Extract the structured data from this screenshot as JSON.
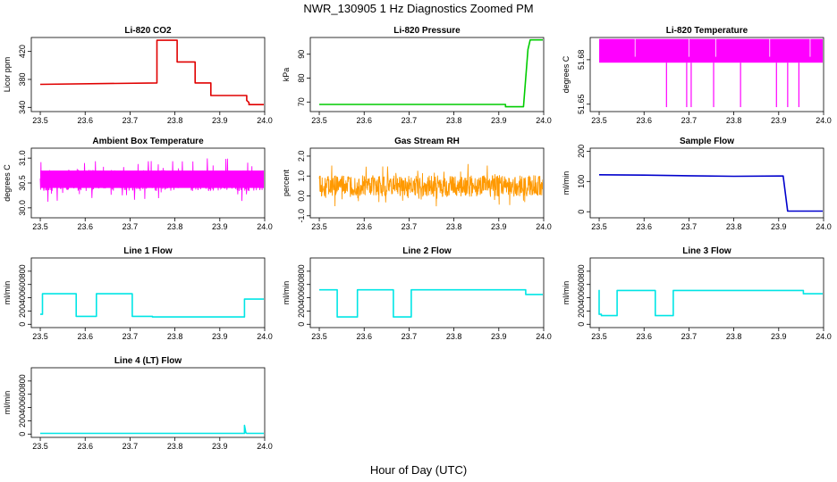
{
  "figure_title": "NWR_130905  1 Hz Diagnostics Zoomed PM",
  "x_axis_label": "Hour of Day (UTC)",
  "chart_data": [
    {
      "type": "line",
      "title": "Li-820 CO2",
      "ylabel": "Licor ppm",
      "x_ticks": [
        "23.5",
        "23.6",
        "23.7",
        "23.8",
        "23.9",
        "24.0"
      ],
      "xlim": [
        23.48,
        24.0
      ],
      "y_ticks": [
        340,
        380,
        420
      ],
      "ylim": [
        334,
        440
      ],
      "color": "#e00000",
      "series": [
        {
          "x": [
            23.5,
            23.76,
            23.76,
            23.805,
            23.805,
            23.845,
            23.845,
            23.88,
            23.88,
            23.96,
            23.96,
            23.965,
            23.965,
            24.0
          ],
          "y": [
            373,
            375,
            436,
            436,
            405,
            405,
            375,
            375,
            357,
            357,
            350,
            347,
            344,
            344
          ]
        }
      ]
    },
    {
      "type": "line",
      "title": "Li-820 Pressure",
      "ylabel": "kPa",
      "x_ticks": [
        "23.5",
        "23.6",
        "23.7",
        "23.8",
        "23.9",
        "24.0"
      ],
      "xlim": [
        23.48,
        24.0
      ],
      "y_ticks": [
        70,
        80,
        90
      ],
      "ylim": [
        66,
        97
      ],
      "color": "#00cc00",
      "series": [
        {
          "x": [
            23.5,
            23.915,
            23.915,
            23.955,
            23.96,
            23.965,
            23.97,
            24.0
          ],
          "y": [
            69,
            69,
            68,
            68,
            80,
            92,
            96,
            96
          ]
        }
      ]
    },
    {
      "type": "line",
      "title": "Li-820 Temperature",
      "ylabel": "degrees C",
      "x_ticks": [
        "23.5",
        "23.6",
        "23.7",
        "23.8",
        "23.9",
        "24.0"
      ],
      "xlim": [
        23.48,
        24.0
      ],
      "y_ticks": [
        51.65,
        51.68
      ],
      "y_tick_labels": [
        "51.65",
        "51.68"
      ],
      "ylim": [
        51.645,
        51.695
      ],
      "color": "#ff00ff",
      "band": {
        "lo": 51.678,
        "hi": 51.694
      },
      "dips": [
        23.65,
        23.695,
        23.705,
        23.755,
        23.815,
        23.895,
        23.92,
        23.945
      ],
      "dip_to": 51.648
    },
    {
      "type": "line",
      "title": "Ambient Box Temperature",
      "ylabel": "degrees C",
      "x_ticks": [
        "23.5",
        "23.6",
        "23.7",
        "23.8",
        "23.9",
        "24.0"
      ],
      "xlim": [
        23.48,
        24.0
      ],
      "y_ticks": [
        30.0,
        30.5,
        31.0
      ],
      "y_tick_labels": [
        "30.0",
        "30.5",
        "31.0"
      ],
      "ylim": [
        29.8,
        31.2
      ],
      "color": "#ff00ff",
      "band": {
        "lo": 30.4,
        "hi": 30.75
      },
      "noise": {
        "center": 30.55,
        "amp": 0.35
      }
    },
    {
      "type": "line",
      "title": "Gas Stream RH",
      "ylabel": "percent",
      "x_ticks": [
        "23.5",
        "23.6",
        "23.7",
        "23.8",
        "23.9",
        "24.0"
      ],
      "xlim": [
        23.48,
        24.0
      ],
      "y_ticks": [
        -1.0,
        0.0,
        1.0,
        2.0
      ],
      "y_tick_labels": [
        "-1.0",
        "0.0",
        "1.0",
        "2.0"
      ],
      "ylim": [
        -1.1,
        2.4
      ],
      "color": "#ff9900",
      "noise": {
        "center": 0.5,
        "amp": 0.9
      }
    },
    {
      "type": "line",
      "title": "Sample Flow",
      "ylabel": "ml/min",
      "x_ticks": [
        "23.5",
        "23.6",
        "23.7",
        "23.8",
        "23.9",
        "24.0"
      ],
      "xlim": [
        23.48,
        24.0
      ],
      "y_ticks": [
        0,
        100,
        200
      ],
      "ylim": [
        -20,
        210
      ],
      "color": "#0000cc",
      "series": [
        {
          "x": [
            23.5,
            23.6,
            23.7,
            23.8,
            23.9,
            23.91,
            23.915,
            23.92,
            24.0
          ],
          "y": [
            122,
            121,
            119,
            117,
            118,
            118,
            60,
            2,
            2
          ]
        }
      ]
    },
    {
      "type": "line",
      "title": "Line 1 Flow",
      "ylabel": "ml/min",
      "x_ticks": [
        "23.5",
        "23.6",
        "23.7",
        "23.8",
        "23.9",
        "24.0"
      ],
      "xlim": [
        23.48,
        24.0
      ],
      "y_ticks": [
        0,
        200,
        400,
        600,
        800
      ],
      "ylim": [
        -50,
        1000
      ],
      "color": "#00e5e5",
      "series": [
        {
          "x": [
            23.5,
            23.505,
            23.505,
            23.58,
            23.58,
            23.625,
            23.625,
            23.705,
            23.705,
            23.75,
            23.75,
            23.955,
            23.955,
            24.0
          ],
          "y": [
            150,
            150,
            460,
            460,
            120,
            120,
            460,
            460,
            120,
            120,
            110,
            110,
            380,
            380
          ]
        }
      ]
    },
    {
      "type": "line",
      "title": "Line 2 Flow",
      "ylabel": "ml/min",
      "x_ticks": [
        "23.5",
        "23.6",
        "23.7",
        "23.8",
        "23.9",
        "24.0"
      ],
      "xlim": [
        23.48,
        24.0
      ],
      "y_ticks": [
        0,
        200,
        400,
        600,
        800
      ],
      "ylim": [
        -50,
        1000
      ],
      "color": "#00e5e5",
      "series": [
        {
          "x": [
            23.5,
            23.54,
            23.54,
            23.585,
            23.585,
            23.665,
            23.665,
            23.705,
            23.705,
            23.96,
            23.96,
            24.0
          ],
          "y": [
            520,
            520,
            110,
            110,
            520,
            520,
            110,
            110,
            520,
            520,
            450,
            450
          ]
        }
      ]
    },
    {
      "type": "line",
      "title": "Line 3 Flow",
      "ylabel": "ml/min",
      "x_ticks": [
        "23.5",
        "23.6",
        "23.7",
        "23.8",
        "23.9",
        "24.0"
      ],
      "xlim": [
        23.48,
        24.0
      ],
      "y_ticks": [
        0,
        200,
        400,
        600,
        800
      ],
      "ylim": [
        -50,
        1000
      ],
      "color": "#00e5e5",
      "series": [
        {
          "x": [
            23.5,
            23.5,
            23.505,
            23.505,
            23.54,
            23.54,
            23.625,
            23.625,
            23.665,
            23.665,
            23.955,
            23.955,
            24.0
          ],
          "y": [
            520,
            150,
            150,
            130,
            130,
            510,
            510,
            130,
            130,
            510,
            510,
            460,
            460
          ]
        }
      ]
    },
    {
      "type": "line",
      "title": "Line 4 (LT) Flow",
      "ylabel": "ml/min",
      "x_ticks": [
        "23.5",
        "23.6",
        "23.7",
        "23.8",
        "23.9",
        "24.0"
      ],
      "xlim": [
        23.48,
        24.0
      ],
      "y_ticks": [
        0,
        200,
        400,
        600,
        800
      ],
      "ylim": [
        -50,
        1000
      ],
      "color": "#00e5e5",
      "series": [
        {
          "x": [
            23.5,
            23.955,
            23.955,
            23.958,
            23.96,
            24.0
          ],
          "y": [
            10,
            10,
            130,
            20,
            10,
            10
          ]
        }
      ]
    }
  ]
}
